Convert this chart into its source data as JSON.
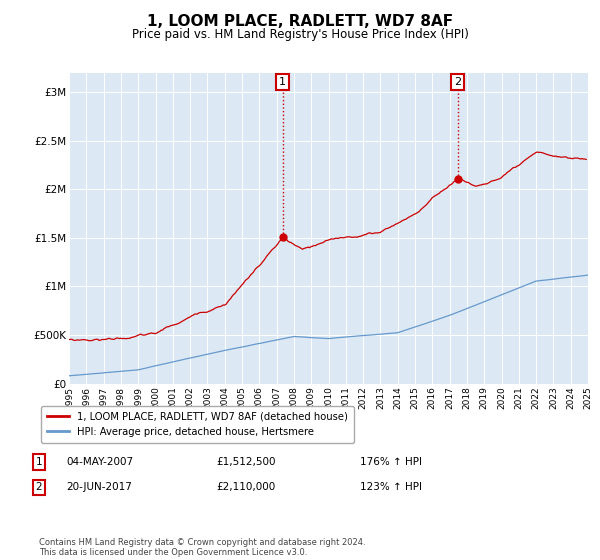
{
  "title": "1, LOOM PLACE, RADLETT, WD7 8AF",
  "subtitle": "Price paid vs. HM Land Registry's House Price Index (HPI)",
  "title_fontsize": 11,
  "subtitle_fontsize": 8.5,
  "background_color": "#ffffff",
  "plot_bg_color": "#dce9f5",
  "legend_label_red": "1, LOOM PLACE, RADLETT, WD7 8AF (detached house)",
  "legend_label_blue": "HPI: Average price, detached house, Hertsmere",
  "annotation1_date": "04-MAY-2007",
  "annotation1_price": "£1,512,500",
  "annotation1_hpi": "176% ↑ HPI",
  "annotation2_date": "20-JUN-2017",
  "annotation2_price": "£2,110,000",
  "annotation2_hpi": "123% ↑ HPI",
  "footer": "Contains HM Land Registry data © Crown copyright and database right 2024.\nThis data is licensed under the Open Government Licence v3.0.",
  "ylim": [
    0,
    3200000
  ],
  "yticks": [
    0,
    500000,
    1000000,
    1500000,
    2000000,
    2500000,
    3000000
  ],
  "ytick_labels": [
    "£0",
    "£500K",
    "£1M",
    "£1.5M",
    "£2M",
    "£2.5M",
    "£3M"
  ],
  "year_start": 1995,
  "year_end": 2025,
  "red_color": "#cc0000",
  "blue_color": "#6699cc",
  "marker1_year": 2007.35,
  "marker1_price": 1512500,
  "marker2_year": 2017.47,
  "marker2_price": 2110000
}
